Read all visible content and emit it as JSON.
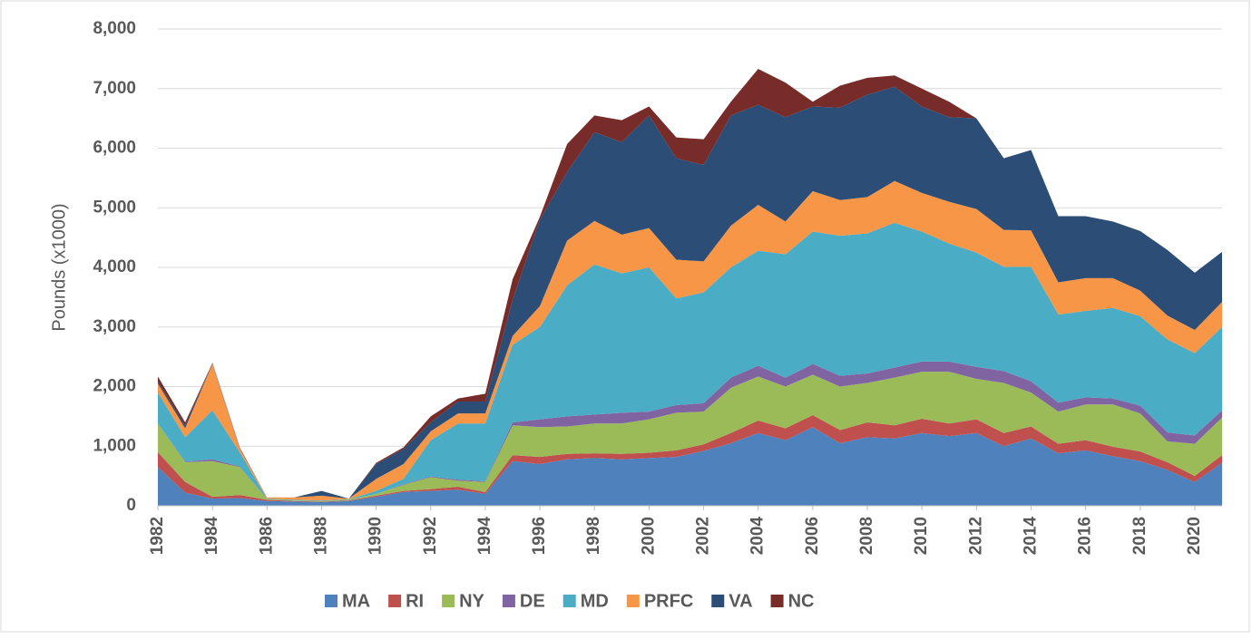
{
  "chart_data": {
    "type": "stacked_area",
    "y_label": "Pounds (x1000)",
    "x": [
      1982,
      1983,
      1984,
      1985,
      1986,
      1987,
      1988,
      1989,
      1990,
      1991,
      1992,
      1993,
      1994,
      1995,
      1996,
      1997,
      1998,
      1999,
      2000,
      2001,
      2002,
      2003,
      2004,
      2005,
      2006,
      2007,
      2008,
      2009,
      2010,
      2011,
      2012,
      2013,
      2014,
      2015,
      2016,
      2017,
      2018,
      2019,
      2020,
      2021
    ],
    "xlim": [
      1982,
      2021
    ],
    "xticks": [
      1982,
      1984,
      1986,
      1988,
      1990,
      1992,
      1994,
      1996,
      1998,
      2000,
      2002,
      2004,
      2006,
      2008,
      2010,
      2012,
      2014,
      2016,
      2018,
      2020
    ],
    "ylim": [
      0,
      8000
    ],
    "yticks": [
      0,
      {
        "value": 1000,
        "label": "1,000"
      },
      {
        "value": 2000,
        "label": "2,000"
      },
      {
        "value": 3000,
        "label": "3,000"
      },
      {
        "value": 4000,
        "label": "4,000"
      },
      {
        "value": 5000,
        "label": "5,000"
      },
      {
        "value": 6000,
        "label": "6,000"
      },
      {
        "value": 7000,
        "label": "7,000"
      },
      {
        "value": 8000,
        "label": "8,000"
      }
    ],
    "grid": true,
    "legend": "bottom",
    "series": [
      {
        "name": "MA",
        "color": "#4f81bd",
        "values": [
          650,
          220,
          120,
          130,
          80,
          70,
          60,
          80,
          150,
          230,
          250,
          270,
          200,
          750,
          700,
          780,
          800,
          780,
          800,
          820,
          920,
          1050,
          1220,
          1100,
          1320,
          1050,
          1150,
          1130,
          1220,
          1170,
          1220,
          1000,
          1130,
          880,
          930,
          830,
          750,
          600,
          400,
          720
        ]
      },
      {
        "name": "RI",
        "color": "#c0504d",
        "values": [
          250,
          180,
          30,
          50,
          20,
          10,
          10,
          10,
          20,
          20,
          30,
          50,
          30,
          100,
          120,
          90,
          80,
          90,
          90,
          110,
          110,
          170,
          210,
          200,
          200,
          220,
          250,
          220,
          240,
          210,
          230,
          220,
          200,
          160,
          170,
          160,
          160,
          130,
          100,
          130
        ]
      },
      {
        "name": "NY",
        "color": "#9bbb59",
        "values": [
          480,
          330,
          600,
          470,
          10,
          10,
          10,
          10,
          30,
          100,
          200,
          100,
          170,
          500,
          500,
          460,
          500,
          510,
          560,
          630,
          550,
          760,
          740,
          700,
          680,
          730,
          660,
          800,
          790,
          870,
          680,
          840,
          570,
          540,
          600,
          710,
          640,
          350,
          540,
          630
        ]
      },
      {
        "name": "DE",
        "color": "#8064a2",
        "values": [
          0,
          10,
          30,
          10,
          0,
          0,
          0,
          0,
          0,
          10,
          10,
          20,
          10,
          50,
          130,
          170,
          150,
          180,
          130,
          130,
          140,
          170,
          180,
          150,
          180,
          180,
          160,
          170,
          170,
          170,
          200,
          200,
          190,
          150,
          120,
          100,
          130,
          150,
          140,
          120
        ]
      },
      {
        "name": "MD",
        "color": "#4bacc6",
        "values": [
          520,
          410,
          820,
          240,
          10,
          10,
          10,
          10,
          50,
          90,
          610,
          940,
          970,
          1300,
          1550,
          2200,
          2520,
          2340,
          2420,
          1790,
          1860,
          1850,
          1930,
          2070,
          2220,
          2350,
          2350,
          2430,
          2180,
          1980,
          1920,
          1750,
          1920,
          1480,
          1450,
          1520,
          1500,
          1560,
          1380,
          1400
        ]
      },
      {
        "name": "PRFC",
        "color": "#f79646",
        "values": [
          150,
          150,
          780,
          60,
          20,
          40,
          80,
          10,
          200,
          250,
          150,
          170,
          170,
          150,
          350,
          750,
          730,
          650,
          660,
          650,
          520,
          700,
          770,
          550,
          680,
          600,
          610,
          700,
          650,
          700,
          730,
          620,
          610,
          540,
          550,
          500,
          430,
          400,
          390,
          420
        ]
      },
      {
        "name": "VA",
        "color": "#2c4d75",
        "values": [
          30,
          50,
          10,
          10,
          0,
          0,
          80,
          0,
          250,
          250,
          150,
          200,
          200,
          600,
          1450,
          1150,
          1490,
          1550,
          1890,
          1700,
          1620,
          1850,
          1680,
          1750,
          1420,
          1550,
          1720,
          1580,
          1450,
          1420,
          1520,
          1200,
          1350,
          1110,
          1040,
          950,
          1000,
          1100,
          960,
          840
        ]
      },
      {
        "name": "NC",
        "color": "#772c2a",
        "values": [
          90,
          50,
          10,
          10,
          0,
          0,
          0,
          0,
          20,
          30,
          100,
          50,
          130,
          350,
          50,
          470,
          280,
          370,
          150,
          350,
          430,
          230,
          600,
          580,
          80,
          370,
          280,
          190,
          300,
          260,
          0,
          0,
          0,
          0,
          0,
          0,
          0,
          0,
          0,
          0
        ]
      }
    ]
  }
}
